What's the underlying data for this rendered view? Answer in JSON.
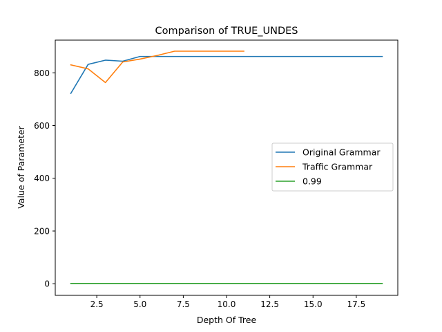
{
  "chart_data": {
    "type": "line",
    "title": "Comparison of TRUE_UNDES",
    "xlabel": "Depth Of Tree",
    "ylabel": "Value of Parameter",
    "xlim": [
      0.1,
      19.9
    ],
    "ylim": [
      -44,
      924
    ],
    "xticks": [
      2.5,
      5.0,
      7.5,
      10.0,
      12.5,
      15.0,
      17.5
    ],
    "xtick_labels": [
      "2.5",
      "5.0",
      "7.5",
      "10.0",
      "12.5",
      "15.0",
      "17.5"
    ],
    "yticks": [
      0,
      200,
      400,
      600,
      800
    ],
    "ytick_labels": [
      "0",
      "200",
      "400",
      "600",
      "800"
    ],
    "grid": false,
    "legend_position": "center-right",
    "series": [
      {
        "name": "Original Grammar",
        "color": "#1f77b4",
        "x": [
          1,
          2,
          3,
          4,
          5,
          6,
          7,
          8,
          9,
          10,
          11,
          12,
          13,
          14,
          15,
          16,
          17,
          18,
          19
        ],
        "y": [
          722,
          832,
          848,
          844,
          862,
          862,
          862,
          862,
          862,
          862,
          862,
          862,
          862,
          862,
          862,
          862,
          862,
          862,
          862
        ]
      },
      {
        "name": "Traffic Grammar",
        "color": "#ff7f0e",
        "x": [
          1,
          2,
          3,
          4,
          5,
          6,
          7,
          8,
          9,
          10,
          11
        ],
        "y": [
          830,
          815,
          763,
          841,
          852,
          866,
          882,
          882,
          882,
          882,
          882
        ]
      },
      {
        "name": "0.99",
        "color": "#2ca02c",
        "x": [
          1,
          2,
          3,
          4,
          5,
          6,
          7,
          8,
          9,
          10,
          11,
          12,
          13,
          14,
          15,
          16,
          17,
          18,
          19
        ],
        "y": [
          0.99,
          0.99,
          0.99,
          0.99,
          0.99,
          0.99,
          0.99,
          0.99,
          0.99,
          0.99,
          0.99,
          0.99,
          0.99,
          0.99,
          0.99,
          0.99,
          0.99,
          0.99,
          0.99
        ]
      }
    ]
  }
}
